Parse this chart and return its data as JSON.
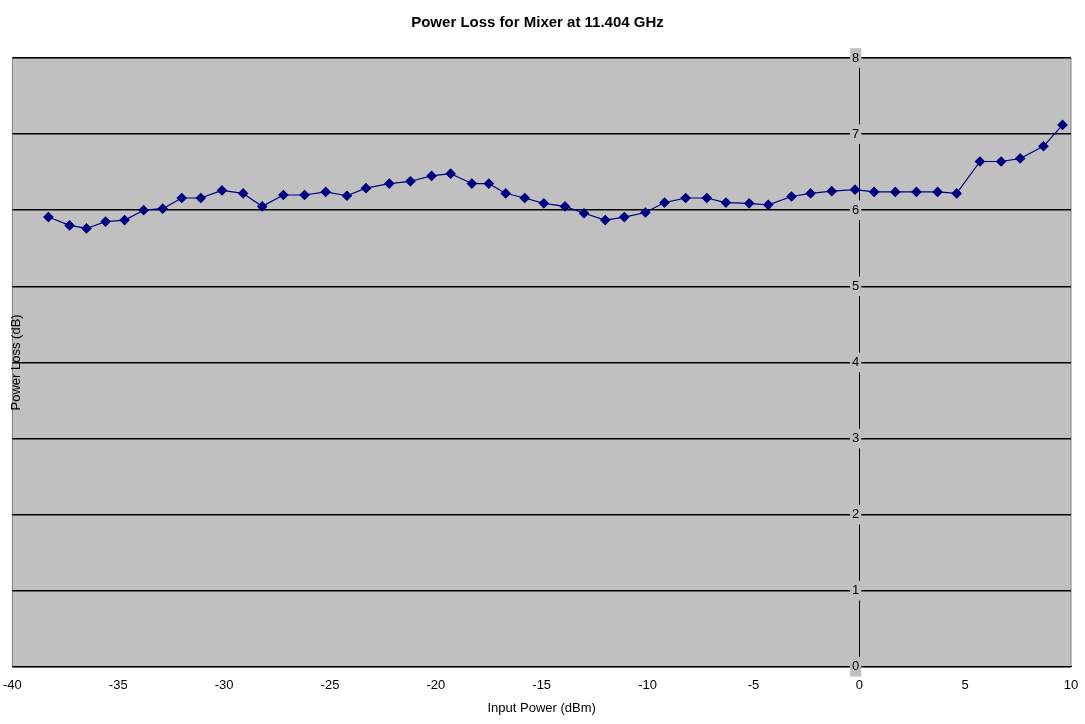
{
  "chart_data": {
    "type": "line",
    "title": "Power Loss for Mixer at 11.404 GHz",
    "xlabel": "Input Power (dBm)",
    "ylabel": "Power Loss (dB)",
    "x": [
      -38.3,
      -37.3,
      -36.5,
      -35.6,
      -34.7,
      -33.8,
      -32.9,
      -32.0,
      -31.1,
      -30.1,
      -29.1,
      -28.2,
      -27.2,
      -26.2,
      -25.2,
      -24.2,
      -23.3,
      -22.2,
      -21.2,
      -20.2,
      -19.3,
      -18.3,
      -17.5,
      -16.7,
      -15.8,
      -14.9,
      -13.9,
      -13.0,
      -12.0,
      -11.1,
      -10.1,
      -9.2,
      -8.2,
      -7.2,
      -6.3,
      -5.2,
      -4.3,
      -3.2,
      -2.3,
      -1.3,
      -0.2,
      0.7,
      1.7,
      2.7,
      3.7,
      4.6,
      5.7,
      6.7,
      7.6,
      8.7,
      9.6
    ],
    "series": [
      {
        "color": "#000080",
        "values": [
          5.91,
          5.8,
          5.76,
          5.85,
          5.87,
          6.0,
          6.02,
          6.16,
          6.16,
          6.26,
          6.22,
          6.05,
          6.2,
          6.2,
          6.24,
          6.19,
          6.29,
          6.35,
          6.38,
          6.45,
          6.48,
          6.35,
          6.35,
          6.22,
          6.16,
          6.09,
          6.05,
          5.96,
          5.87,
          5.91,
          5.97,
          6.1,
          6.16,
          6.16,
          6.1,
          6.09,
          6.07,
          6.18,
          6.22,
          6.25,
          6.27,
          6.24,
          6.24,
          6.24,
          6.24,
          6.22,
          6.64,
          6.64,
          6.68,
          6.84,
          7.12
        ]
      }
    ],
    "xlim": [
      -40,
      10
    ],
    "xticks": [
      -40,
      -35,
      -30,
      -25,
      -20,
      -15,
      -10,
      -5,
      0,
      5,
      10
    ],
    "ylim": [
      0,
      8
    ],
    "yticks": [
      0,
      1,
      2,
      3,
      4,
      5,
      6,
      7,
      8
    ],
    "grid": "y",
    "legend": false,
    "marker": "diamond",
    "line_style": "solid"
  }
}
